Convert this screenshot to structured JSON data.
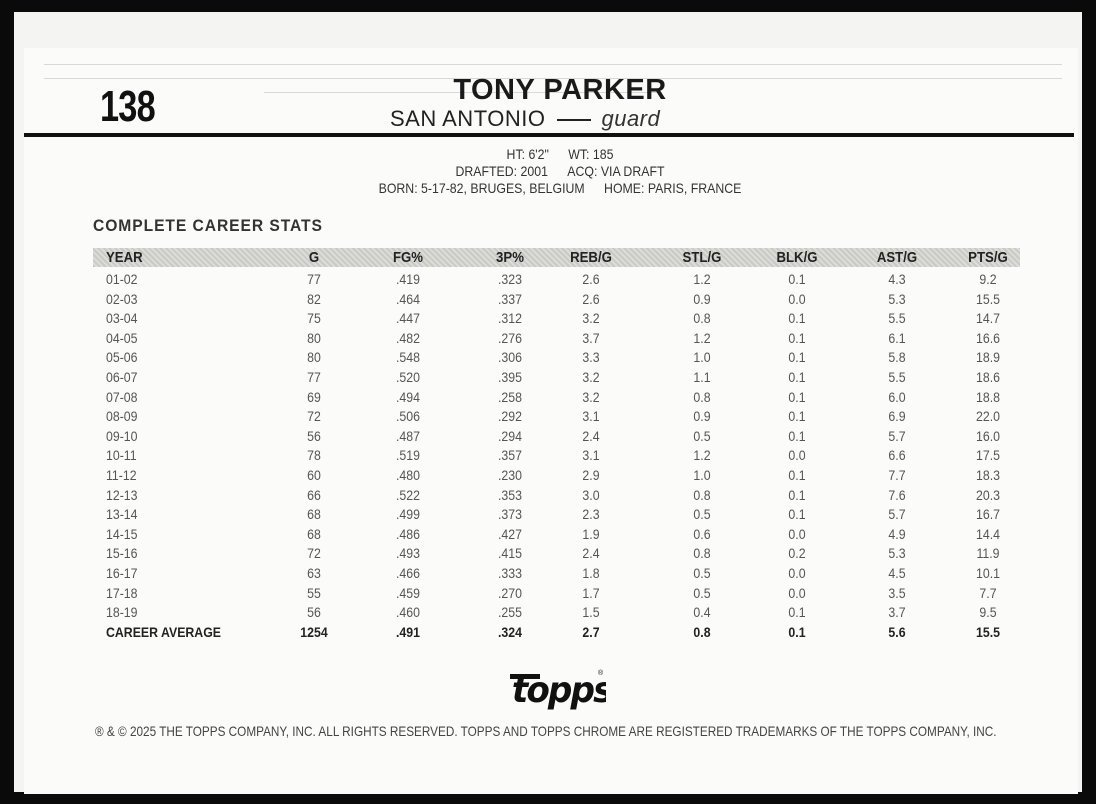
{
  "card": {
    "number": "138",
    "player_name": "TONY PARKER",
    "team": "SAN ANTONIO",
    "position": "guard",
    "bio": {
      "height": "HT: 6'2\"",
      "weight": "WT: 185",
      "drafted": "DRAFTED: 2001",
      "acquired": "ACQ: VIA DRAFT",
      "born": "BORN: 5-17-82, BRUGES, BELGIUM",
      "home": "HOME: PARIS, FRANCE"
    }
  },
  "stats": {
    "title": "COMPLETE CAREER STATS",
    "columns": [
      "YEAR",
      "G",
      "FG%",
      "3P%",
      "REB/G",
      "STL/G",
      "BLK/G",
      "AST/G",
      "PTS/G"
    ],
    "rows": [
      [
        "01-02",
        "77",
        ".419",
        ".323",
        "2.6",
        "1.2",
        "0.1",
        "4.3",
        "9.2"
      ],
      [
        "02-03",
        "82",
        ".464",
        ".337",
        "2.6",
        "0.9",
        "0.0",
        "5.3",
        "15.5"
      ],
      [
        "03-04",
        "75",
        ".447",
        ".312",
        "3.2",
        "0.8",
        "0.1",
        "5.5",
        "14.7"
      ],
      [
        "04-05",
        "80",
        ".482",
        ".276",
        "3.7",
        "1.2",
        "0.1",
        "6.1",
        "16.6"
      ],
      [
        "05-06",
        "80",
        ".548",
        ".306",
        "3.3",
        "1.0",
        "0.1",
        "5.8",
        "18.9"
      ],
      [
        "06-07",
        "77",
        ".520",
        ".395",
        "3.2",
        "1.1",
        "0.1",
        "5.5",
        "18.6"
      ],
      [
        "07-08",
        "69",
        ".494",
        ".258",
        "3.2",
        "0.8",
        "0.1",
        "6.0",
        "18.8"
      ],
      [
        "08-09",
        "72",
        ".506",
        ".292",
        "3.1",
        "0.9",
        "0.1",
        "6.9",
        "22.0"
      ],
      [
        "09-10",
        "56",
        ".487",
        ".294",
        "2.4",
        "0.5",
        "0.1",
        "5.7",
        "16.0"
      ],
      [
        "10-11",
        "78",
        ".519",
        ".357",
        "3.1",
        "1.2",
        "0.0",
        "6.6",
        "17.5"
      ],
      [
        "11-12",
        "60",
        ".480",
        ".230",
        "2.9",
        "1.0",
        "0.1",
        "7.7",
        "18.3"
      ],
      [
        "12-13",
        "66",
        ".522",
        ".353",
        "3.0",
        "0.8",
        "0.1",
        "7.6",
        "20.3"
      ],
      [
        "13-14",
        "68",
        ".499",
        ".373",
        "2.3",
        "0.5",
        "0.1",
        "5.7",
        "16.7"
      ],
      [
        "14-15",
        "68",
        ".486",
        ".427",
        "1.9",
        "0.6",
        "0.0",
        "4.9",
        "14.4"
      ],
      [
        "15-16",
        "72",
        ".493",
        ".415",
        "2.4",
        "0.8",
        "0.2",
        "5.3",
        "11.9"
      ],
      [
        "16-17",
        "63",
        ".466",
        ".333",
        "1.8",
        "0.5",
        "0.0",
        "4.5",
        "10.1"
      ],
      [
        "17-18",
        "55",
        ".459",
        ".270",
        "1.7",
        "0.5",
        "0.0",
        "3.5",
        "7.7"
      ],
      [
        "18-19",
        "56",
        ".460",
        ".255",
        "1.5",
        "0.4",
        "0.1",
        "3.7",
        "9.5"
      ]
    ],
    "career": [
      "CAREER AVERAGE",
      "1254",
      ".491",
      ".324",
      "2.7",
      "0.8",
      "0.1",
      "5.6",
      "15.5"
    ]
  },
  "footer": {
    "logo_text": "topps",
    "legal": "® & © 2025 THE TOPPS COMPANY, INC. ALL RIGHTS RESERVED. TOPPS AND TOPPS CHROME ARE REGISTERED TRADEMARKS OF THE TOPPS COMPANY, INC."
  }
}
